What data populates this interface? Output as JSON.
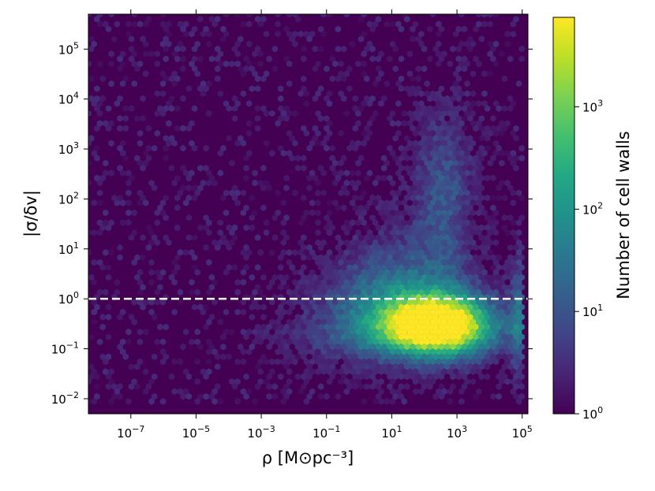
{
  "chart_data": {
    "type": "heatmap",
    "subtype": "hexbin",
    "title": "",
    "xlabel": "ρ [M⊙pc⁻³]",
    "ylabel": "|σ/δv|",
    "x_scale": "log",
    "y_scale": "log",
    "xlim": [
      5e-09,
      150000.0
    ],
    "ylim": [
      0.005,
      500000
    ],
    "x_ticks": [
      {
        "base": "10",
        "exp": "−7",
        "value": 1e-07
      },
      {
        "base": "10",
        "exp": "−5",
        "value": 1e-05
      },
      {
        "base": "10",
        "exp": "−3",
        "value": 0.001
      },
      {
        "base": "10",
        "exp": "−1",
        "value": 0.1
      },
      {
        "base": "10",
        "exp": "1",
        "value": 10
      },
      {
        "base": "10",
        "exp": "3",
        "value": 1000
      },
      {
        "base": "10",
        "exp": "5",
        "value": 100000
      }
    ],
    "y_ticks": [
      {
        "base": "10",
        "exp": "−2",
        "value": 0.01
      },
      {
        "base": "10",
        "exp": "−1",
        "value": 0.1
      },
      {
        "base": "10",
        "exp": "0",
        "value": 1
      },
      {
        "base": "10",
        "exp": "1",
        "value": 10
      },
      {
        "base": "10",
        "exp": "2",
        "value": 100
      },
      {
        "base": "10",
        "exp": "3",
        "value": 1000
      },
      {
        "base": "10",
        "exp": "4",
        "value": 10000
      },
      {
        "base": "10",
        "exp": "5",
        "value": 100000
      }
    ],
    "reference_line": {
      "y": 1,
      "style": "dashed",
      "color": "#ffffff"
    },
    "colorbar": {
      "label": "Number of cell walls",
      "scale": "log",
      "range": [
        1,
        7500
      ],
      "ticks": [
        {
          "base": "10",
          "exp": "0",
          "value": 1
        },
        {
          "base": "10",
          "exp": "1",
          "value": 10
        },
        {
          "base": "10",
          "exp": "2",
          "value": 100
        },
        {
          "base": "10",
          "exp": "3",
          "value": 1000
        }
      ],
      "colormap": "viridis"
    },
    "density_peak": {
      "x": 300,
      "y": 0.3,
      "count": 7500
    },
    "background_color": "#440154"
  }
}
